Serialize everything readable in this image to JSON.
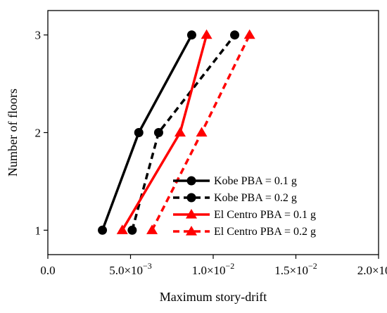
{
  "chart_data": {
    "type": "line",
    "xlabel": "Maximum story-drift",
    "ylabel": "Number of floors",
    "xlim": [
      0.0,
      0.02
    ],
    "ylim": [
      0.75,
      3.25
    ],
    "x_ticks": [
      0.0,
      0.005,
      0.01,
      0.015,
      0.02
    ],
    "x_tick_labels": [
      {
        "mantissa": "0.0",
        "exponent": ""
      },
      {
        "mantissa": "5.0×10",
        "exponent": "−3"
      },
      {
        "mantissa": "1.0×10",
        "exponent": "−2"
      },
      {
        "mantissa": "1.5×10",
        "exponent": "−2"
      },
      {
        "mantissa": "2.0×10",
        "exponent": "−2"
      }
    ],
    "y_ticks": [
      1,
      2,
      3
    ],
    "y_tick_labels": [
      "1",
      "2",
      "3"
    ],
    "grid": false,
    "legend_position": "lower-right",
    "series": [
      {
        "name": "Kobe  PBA = 0.1 g",
        "color": "#000000",
        "dash": "solid",
        "marker": "circle",
        "points": [
          {
            "x": 0.0033,
            "y": 1
          },
          {
            "x": 0.0055,
            "y": 2
          },
          {
            "x": 0.0087,
            "y": 3
          }
        ]
      },
      {
        "name": "Kobe  PBA = 0.2 g",
        "color": "#000000",
        "dash": "dashed",
        "marker": "circle",
        "points": [
          {
            "x": 0.0051,
            "y": 1
          },
          {
            "x": 0.0067,
            "y": 2
          },
          {
            "x": 0.0113,
            "y": 3
          }
        ]
      },
      {
        "name": "El Centro  PBA = 0.1 g",
        "color": "#ff0000",
        "dash": "solid",
        "marker": "triangle",
        "points": [
          {
            "x": 0.0045,
            "y": 1
          },
          {
            "x": 0.008,
            "y": 2
          },
          {
            "x": 0.0096,
            "y": 3
          }
        ]
      },
      {
        "name": "El Centro  PBA = 0.2 g",
        "color": "#ff0000",
        "dash": "dashed",
        "marker": "triangle",
        "points": [
          {
            "x": 0.0063,
            "y": 1
          },
          {
            "x": 0.0093,
            "y": 2
          },
          {
            "x": 0.0122,
            "y": 3
          }
        ]
      }
    ]
  }
}
